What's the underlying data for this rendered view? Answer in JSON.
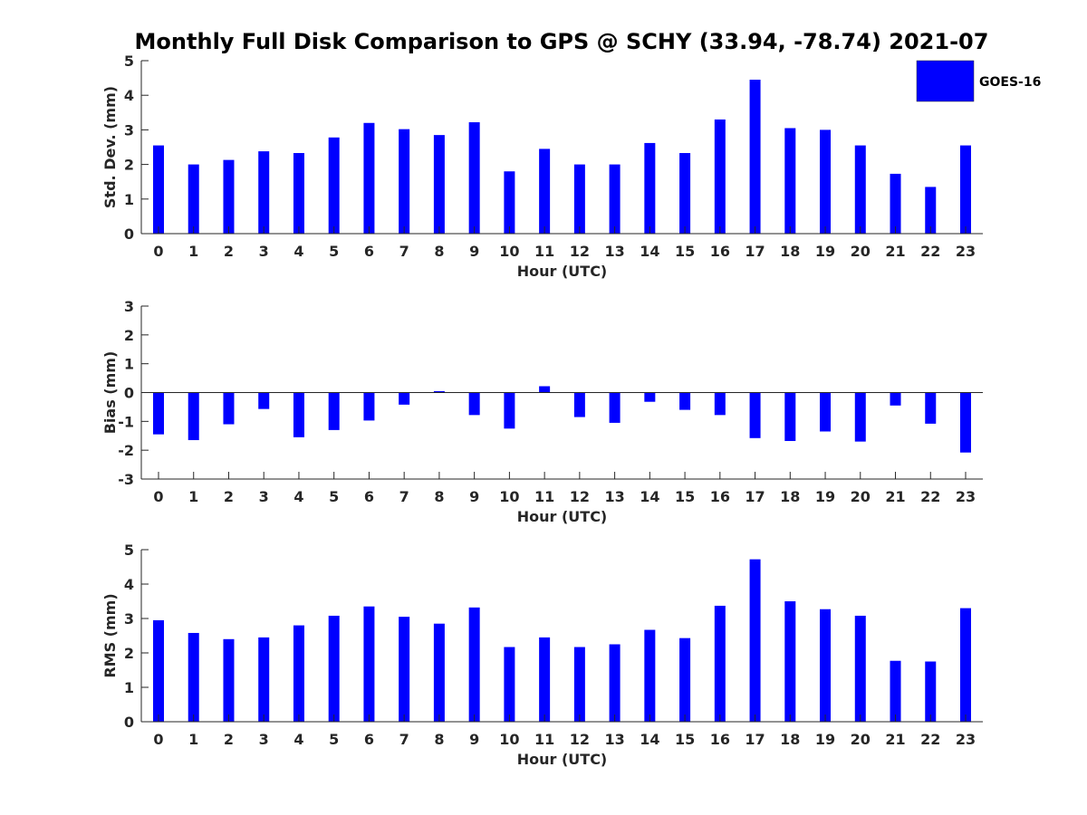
{
  "title": "Monthly Full Disk Comparison to GPS @ SCHY (33.94, -78.74) 2021-07",
  "legend": {
    "label": "GOES-16",
    "color": "#0000ff"
  },
  "chart_data": [
    {
      "type": "bar",
      "ylabel": "Std. Dev. (mm)",
      "xlabel": "Hour (UTC)",
      "ylim": [
        0,
        5
      ],
      "yticks": [
        0,
        1,
        2,
        3,
        4,
        5
      ],
      "categories": [
        "0",
        "1",
        "2",
        "3",
        "4",
        "5",
        "6",
        "7",
        "8",
        "9",
        "10",
        "11",
        "12",
        "13",
        "14",
        "15",
        "16",
        "17",
        "18",
        "19",
        "20",
        "21",
        "22",
        "23"
      ],
      "series": [
        {
          "name": "GOES-16",
          "values": [
            2.55,
            2.0,
            2.13,
            2.38,
            2.33,
            2.78,
            3.2,
            3.02,
            2.85,
            3.22,
            1.8,
            2.45,
            2.0,
            2.0,
            2.62,
            2.33,
            3.3,
            4.45,
            3.05,
            3.0,
            2.55,
            1.73,
            1.35,
            2.55
          ]
        }
      ]
    },
    {
      "type": "bar",
      "ylabel": "Bias (mm)",
      "xlabel": "Hour (UTC)",
      "ylim": [
        -3,
        3
      ],
      "yticks": [
        -3,
        -2,
        -1,
        0,
        1,
        2,
        3
      ],
      "categories": [
        "0",
        "1",
        "2",
        "3",
        "4",
        "5",
        "6",
        "7",
        "8",
        "9",
        "10",
        "11",
        "12",
        "13",
        "14",
        "15",
        "16",
        "17",
        "18",
        "19",
        "20",
        "21",
        "22",
        "23"
      ],
      "series": [
        {
          "name": "GOES-16",
          "values": [
            -1.45,
            -1.65,
            -1.1,
            -0.57,
            -1.55,
            -1.3,
            -0.97,
            -0.42,
            0.05,
            -0.78,
            -1.25,
            0.22,
            -0.85,
            -1.05,
            -0.32,
            -0.6,
            -0.78,
            -1.58,
            -1.68,
            -1.35,
            -1.7,
            -0.45,
            -1.08,
            -2.08
          ]
        }
      ]
    },
    {
      "type": "bar",
      "ylabel": "RMS (mm)",
      "xlabel": "Hour (UTC)",
      "ylim": [
        0,
        5
      ],
      "yticks": [
        0,
        1,
        2,
        3,
        4,
        5
      ],
      "categories": [
        "0",
        "1",
        "2",
        "3",
        "4",
        "5",
        "6",
        "7",
        "8",
        "9",
        "10",
        "11",
        "12",
        "13",
        "14",
        "15",
        "16",
        "17",
        "18",
        "19",
        "20",
        "21",
        "22",
        "23"
      ],
      "series": [
        {
          "name": "GOES-16",
          "values": [
            2.95,
            2.58,
            2.4,
            2.45,
            2.8,
            3.08,
            3.35,
            3.05,
            2.85,
            3.32,
            2.17,
            2.45,
            2.17,
            2.25,
            2.67,
            2.43,
            3.37,
            4.72,
            3.5,
            3.27,
            3.08,
            1.77,
            1.75,
            3.3
          ]
        }
      ]
    }
  ]
}
